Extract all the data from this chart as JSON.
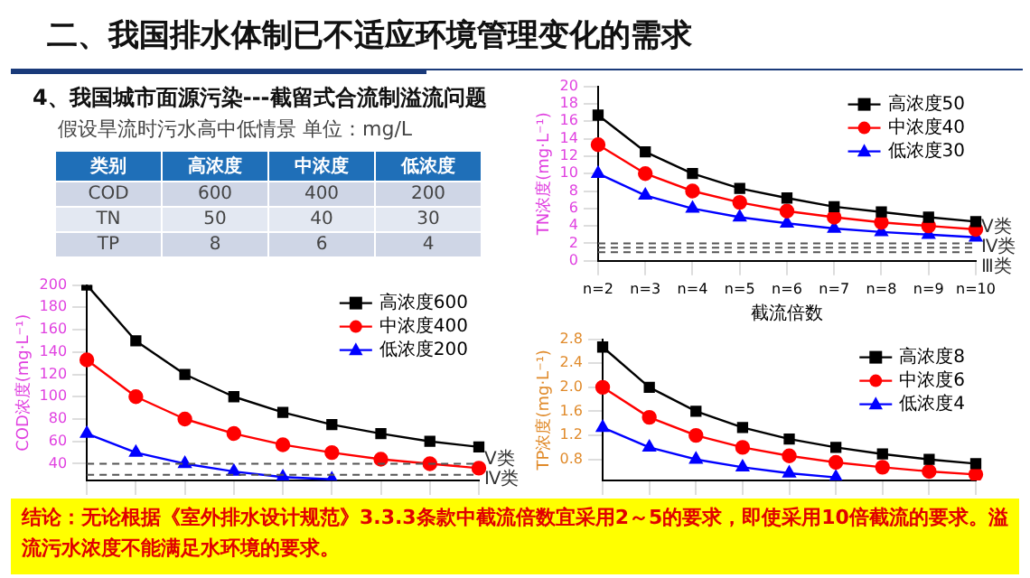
{
  "chart_data": [
    {
      "type": "heatmap",
      "data_labels": true,
      "title": "二、我国排水体制已不适应环境管理变化的需求",
      "subtitle": "4、我国城市面源污染---截留式合流制溢流问题",
      "categories": [
        "高浓度",
        "中浓度",
        "低浓度"
      ],
      "y_categories": [
        "COD",
        "TN",
        "TP"
      ],
      "cells": [
        [
          600,
          400,
          200
        ],
        [
          50,
          40,
          30
        ],
        [
          8,
          6,
          4
        ]
      ],
      "annotations": [
        "假设旱流时污水高中低情景  单位：mg/L",
        "类别",
        "结论：无论根据《室外排水设计规范》3.3.3条款中截流倍数宜采用2～5的要求，即使采用10倍截流的要求。溢流污水浓度不能满足水环境的要求。"
      ]
    },
    {
      "type": "line",
      "xlabel": "截流倍数",
      "ylabel": "TN浓度(mg·L⁻¹)",
      "categories": [
        "n=2",
        "n=3",
        "n=4",
        "n=5",
        "n=6",
        "n=7",
        "n=8",
        "n=9",
        "n=10"
      ],
      "ylim": [
        0,
        20
      ],
      "yticks": [
        0,
        2,
        4,
        6,
        8,
        10,
        12,
        14,
        16,
        18,
        20
      ],
      "legend": "top right",
      "series": [
        {
          "name": "高浓度50",
          "color": "#000000",
          "marker": "square",
          "values": [
            16.7,
            12.5,
            10,
            8.3,
            7.2,
            6.2,
            5.6,
            5,
            4.5
          ]
        },
        {
          "name": "中浓度40",
          "color": "#ff0000",
          "marker": "circle",
          "values": [
            13.3,
            10,
            8,
            6.7,
            5.7,
            5,
            4.4,
            4,
            3.6
          ]
        },
        {
          "name": "低浓度30",
          "color": "#0000ff",
          "marker": "triangle",
          "values": [
            10,
            7.5,
            6,
            5,
            4.3,
            3.7,
            3.3,
            3,
            2.7
          ]
        }
      ],
      "ref_lines": [
        {
          "axis": "y",
          "value": 2,
          "label": "Ⅴ类",
          "color": "#555555",
          "line_style": "dashed"
        },
        {
          "axis": "y",
          "value": 1.5,
          "label": "Ⅳ类",
          "color": "#555555",
          "line_style": "dashed"
        },
        {
          "axis": "y",
          "value": 1,
          "label": "Ⅲ类",
          "color": "#555555",
          "line_style": "dashed"
        }
      ]
    },
    {
      "type": "line",
      "ylabel": "COD浓度(mg·L⁻¹)",
      "categories": [
        null,
        null,
        null,
        null,
        null,
        null,
        null,
        null,
        null
      ],
      "ylim": [
        25,
        200
      ],
      "yticks": [
        40,
        60,
        80,
        100,
        120,
        140,
        160,
        180,
        200
      ],
      "legend": "top right",
      "tick_labels": "y",
      "series": [
        {
          "name": "高浓度600",
          "color": "#000000",
          "marker": "square",
          "values": [
            200,
            150,
            120,
            100,
            86,
            75,
            67,
            60,
            55
          ]
        },
        {
          "name": "中浓度400",
          "color": "#ff0000",
          "marker": "circle",
          "values": [
            133,
            100,
            80,
            67,
            57,
            50,
            44,
            40,
            36
          ]
        },
        {
          "name": "低浓度200",
          "color": "#0000ff",
          "marker": "triangle",
          "values": [
            67,
            50,
            40,
            33,
            28,
            26,
            null,
            null,
            null
          ]
        }
      ],
      "ref_lines": [
        {
          "axis": "y",
          "value": 40,
          "label": "Ⅴ类",
          "color": "#555555",
          "line_style": "dashed"
        },
        {
          "axis": "y",
          "value": 30,
          "label": "Ⅳ类",
          "color": "#555555",
          "line_style": "dashed"
        }
      ]
    },
    {
      "type": "line",
      "ylabel": "TP浓度(mg·L⁻¹)",
      "categories": [
        null,
        null,
        null,
        null,
        null,
        null,
        null,
        null,
        null
      ],
      "ylim": [
        0.45,
        2.8
      ],
      "yticks": [
        0.8,
        1.2,
        1.6,
        {
          "value": 2,
          "label": "2.0"
        },
        2.4,
        2.8
      ],
      "legend": "top right",
      "tick_labels": "y",
      "series": [
        {
          "name": "高浓度8",
          "color": "#000000",
          "marker": "square",
          "values": [
            2.67,
            2,
            1.6,
            1.33,
            1.14,
            1,
            0.89,
            0.8,
            0.73
          ]
        },
        {
          "name": "中浓度6",
          "color": "#ff0000",
          "marker": "circle",
          "values": [
            2,
            1.5,
            1.2,
            1,
            0.86,
            0.75,
            0.67,
            0.6,
            0.55
          ]
        },
        {
          "name": "低浓度4",
          "color": "#0000ff",
          "marker": "triangle",
          "values": [
            1.33,
            1,
            0.8,
            0.67,
            0.57,
            0.5,
            null,
            null,
            null
          ]
        }
      ]
    }
  ]
}
